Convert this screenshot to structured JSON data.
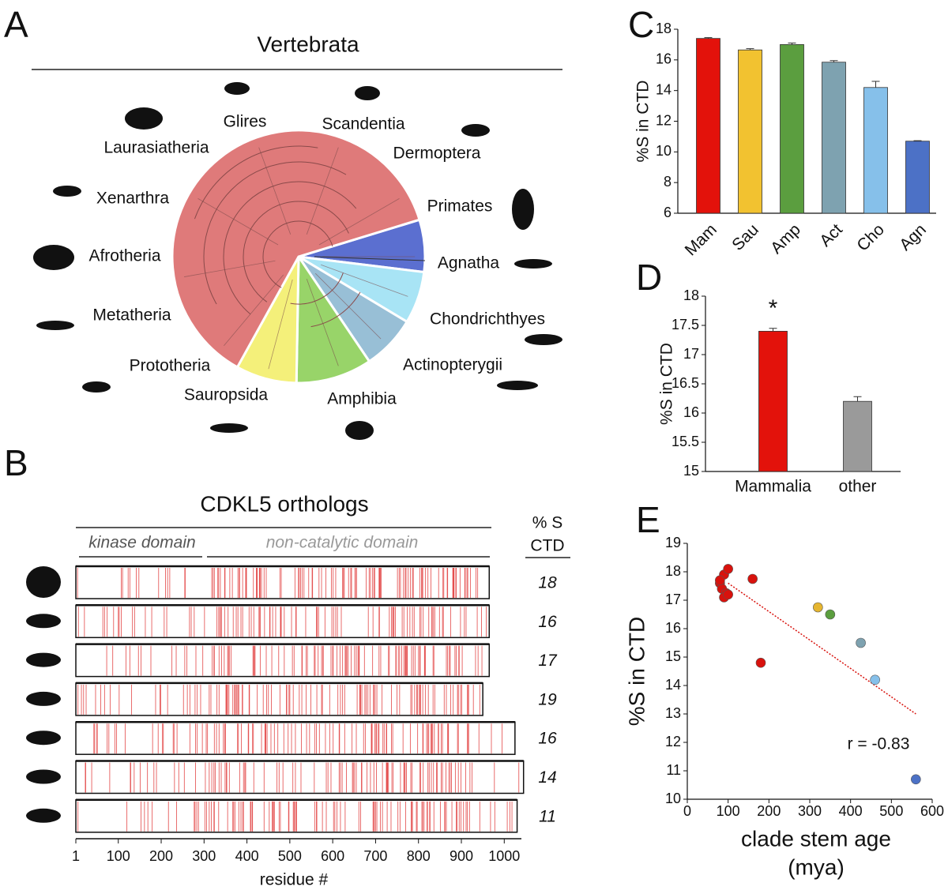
{
  "panel_labels": [
    "A",
    "B",
    "C",
    "D",
    "E"
  ],
  "phylogeny": {
    "title": "Vertebrata",
    "clades": [
      "Glires",
      "Scandentia",
      "Laurasiatheria",
      "Dermoptera",
      "Xenarthra",
      "Primates",
      "Afrotheria",
      "Agnatha",
      "Metatheria",
      "Chondrichthyes",
      "Prototheria",
      "Actinopterygii",
      "Sauropsida",
      "Amphibia"
    ]
  },
  "orthologs": {
    "title": "CDKL5 orthologs",
    "domains": [
      "kinase domain",
      "non-catalytic domain"
    ],
    "column_header": [
      "% S",
      "CTD"
    ],
    "lengths": [
      965,
      965,
      965,
      950,
      1025,
      1045,
      1030
    ],
    "percent_s": [
      18,
      16,
      17,
      19,
      16,
      14,
      11
    ],
    "xlabel": "residue #",
    "xlim": [
      1,
      1040
    ],
    "xticks": [
      1,
      100,
      200,
      300,
      400,
      500,
      600,
      700,
      800,
      900,
      1000
    ]
  },
  "chart_data": [
    {
      "type": "bar",
      "ylabel": "%S in CTD",
      "categories": [
        "Mam",
        "Sau",
        "Amp",
        "Act",
        "Cho",
        "Agn"
      ],
      "values": [
        17.4,
        16.65,
        17.0,
        15.85,
        14.2,
        10.7
      ],
      "errors": [
        0.05,
        0.08,
        0.1,
        0.1,
        0.4,
        0.03
      ],
      "colors": [
        "#e3120b",
        "#f2c230",
        "#5b9e3f",
        "#7ea2b0",
        "#86c0ea",
        "#4c71c6"
      ],
      "ylim": [
        6,
        18
      ],
      "yticks": [
        6,
        8,
        10,
        12,
        14,
        16,
        18
      ]
    },
    {
      "type": "bar",
      "ylabel": "%S in CTD",
      "categories": [
        "Mammalia",
        "other"
      ],
      "values": [
        17.4,
        16.2
      ],
      "errors": [
        0.05,
        0.08
      ],
      "colors": [
        "#e3120b",
        "#9a9a9a"
      ],
      "ylim": [
        15,
        18
      ],
      "yticks": [
        15,
        15.5,
        16,
        16.5,
        17,
        17.5,
        18
      ],
      "annotation": "*"
    },
    {
      "type": "scatter",
      "ylabel": "%S in CTD",
      "xlabel": [
        "clade stem age",
        "(mya)"
      ],
      "x": [
        80,
        90,
        100,
        85,
        95,
        90,
        100,
        80,
        160,
        180,
        320,
        350,
        425,
        460,
        560
      ],
      "y": [
        17.6,
        17.9,
        18.1,
        17.4,
        17.25,
        17.1,
        17.2,
        17.7,
        17.75,
        14.8,
        16.75,
        16.5,
        15.5,
        14.2,
        10.7
      ],
      "colors": [
        "#d8120d",
        "#d8120d",
        "#d8120d",
        "#d8120d",
        "#d8120d",
        "#d8120d",
        "#d8120d",
        "#d8120d",
        "#d8120d",
        "#d8120d",
        "#e5b530",
        "#5b9e3f",
        "#7ea2b0",
        "#86c0ea",
        "#4c71c6"
      ],
      "trendline": {
        "x": [
          100,
          560
        ],
        "y": [
          17.6,
          13.0
        ],
        "color": "#d8120d"
      },
      "annotation": "r = -0.83",
      "xlim": [
        0,
        600
      ],
      "xticks": [
        0,
        100,
        200,
        300,
        400,
        500,
        600
      ],
      "ylim": [
        10,
        19
      ],
      "yticks": [
        10,
        11,
        12,
        13,
        14,
        15,
        16,
        17,
        18,
        19
      ]
    }
  ]
}
